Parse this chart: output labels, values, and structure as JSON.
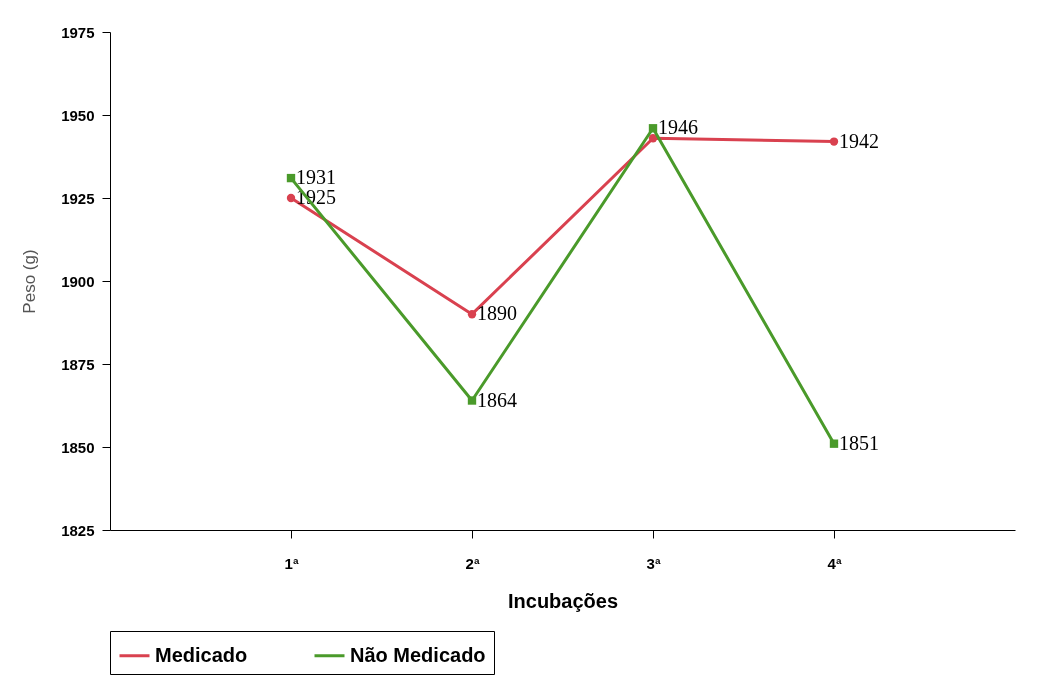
{
  "chart_data": {
    "type": "line",
    "xlabel": "Incubações",
    "ylabel": "Peso (g)",
    "categories": [
      "1ª",
      "2ª",
      "3ª",
      "4ª"
    ],
    "ylim": [
      1825,
      1975
    ],
    "yticks": [
      1825,
      1850,
      1875,
      1900,
      1925,
      1950,
      1975
    ],
    "grid": false,
    "legend": "bottom",
    "series": [
      {
        "name": "Medicado",
        "color": "#d9414f",
        "marker": "circle",
        "values": [
          1925,
          1890,
          1943,
          1942
        ],
        "value_labels": [
          "1925",
          "1890",
          null,
          "1942"
        ]
      },
      {
        "name": "Não Medicado",
        "color": "#4a9a2a",
        "marker": "square",
        "values": [
          1931,
          1864,
          1946,
          1851
        ],
        "value_labels": [
          "1931",
          "1864",
          "1946",
          "1851"
        ]
      }
    ]
  }
}
